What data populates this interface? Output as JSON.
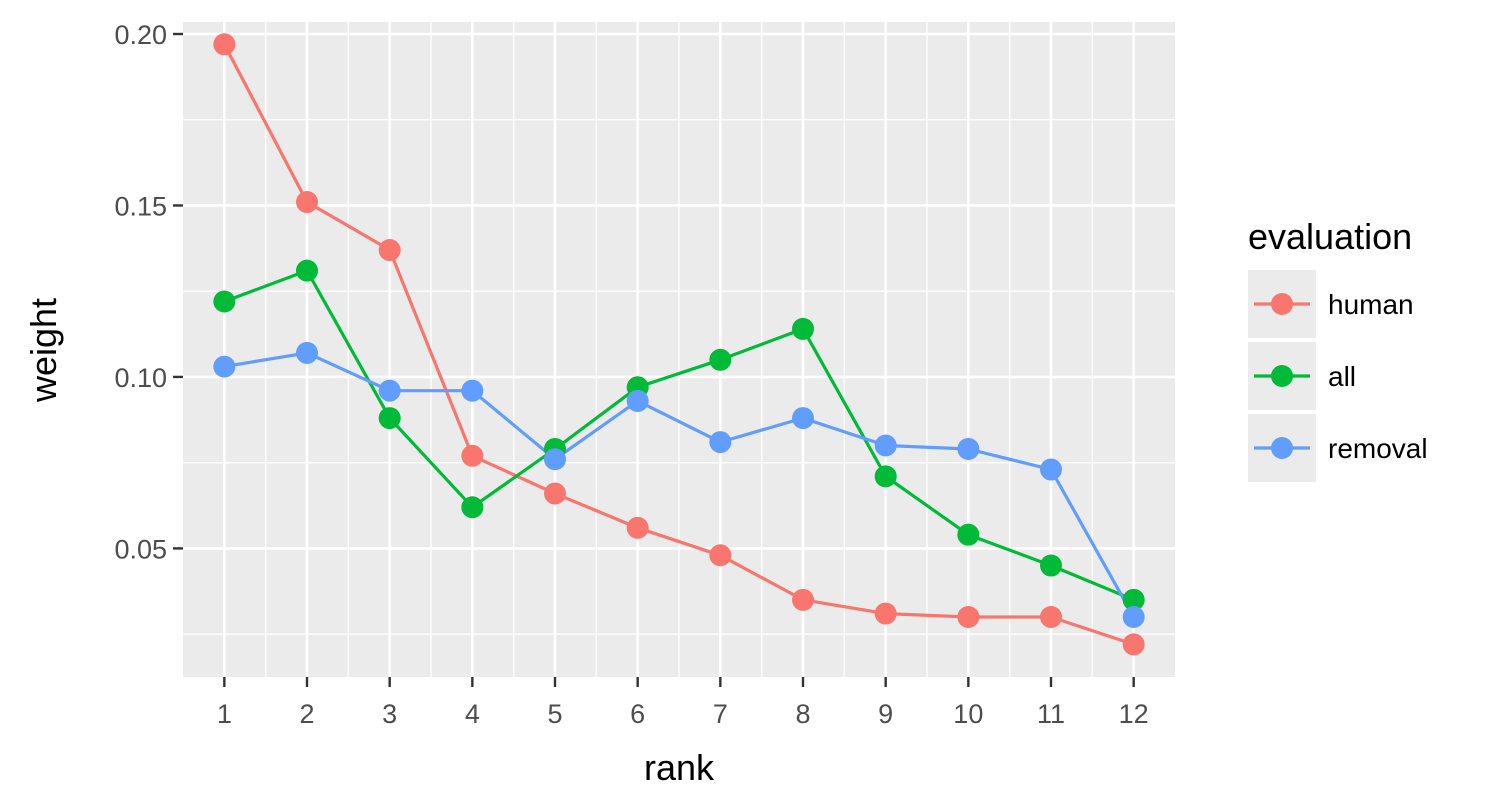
{
  "chart_data": {
    "type": "line",
    "xlabel": "rank",
    "ylabel": "weight",
    "x": [
      1,
      2,
      3,
      4,
      5,
      6,
      7,
      8,
      9,
      10,
      11,
      12
    ],
    "xlim": [
      0.5,
      12.5
    ],
    "ylim": [
      0.0125,
      0.2035
    ],
    "y_ticks": [
      0.05,
      0.1,
      0.15,
      0.2
    ],
    "y_tick_labels": [
      "0.05",
      "0.10",
      "0.15",
      "0.20"
    ],
    "x_tick_labels": [
      "1",
      "2",
      "3",
      "4",
      "5",
      "6",
      "7",
      "8",
      "9",
      "10",
      "11",
      "12"
    ],
    "grid": true,
    "legend": {
      "title": "evaluation",
      "position": "right"
    },
    "series": [
      {
        "name": "human",
        "color": "#F8766D",
        "values": [
          0.197,
          0.151,
          0.137,
          0.077,
          0.066,
          0.056,
          0.048,
          0.035,
          0.031,
          0.03,
          0.03,
          0.022
        ]
      },
      {
        "name": "all",
        "color": "#00BA38",
        "values": [
          0.122,
          0.131,
          0.088,
          0.062,
          0.079,
          0.097,
          0.105,
          0.114,
          0.071,
          0.054,
          0.045,
          0.035
        ]
      },
      {
        "name": "removal",
        "color": "#619CFF",
        "values": [
          0.103,
          0.107,
          0.096,
          0.096,
          0.076,
          0.093,
          0.081,
          0.088,
          0.08,
          0.079,
          0.073,
          0.03
        ]
      }
    ]
  }
}
